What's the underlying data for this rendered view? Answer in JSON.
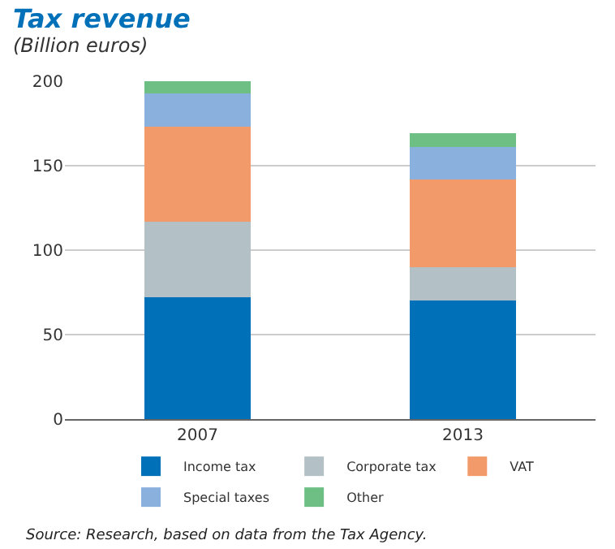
{
  "chart_data": {
    "type": "bar",
    "stacked": true,
    "title": "Tax revenue",
    "subtitle": "(Billion euros)",
    "categories": [
      "2007",
      "2013"
    ],
    "series": [
      {
        "name": "Income tax",
        "color": "#0070b8",
        "values": [
          72,
          70
        ]
      },
      {
        "name": "Corporate tax",
        "color": "#b3c0c5",
        "values": [
          45,
          20
        ]
      },
      {
        "name": "VAT",
        "color": "#f39a6b",
        "values": [
          56,
          52
        ]
      },
      {
        "name": "Special taxes",
        "color": "#8ab0dd",
        "values": [
          20,
          19
        ]
      },
      {
        "name": "Other",
        "color": "#6dbf84",
        "values": [
          7,
          8
        ]
      }
    ],
    "ylim": [
      0,
      200
    ],
    "yticks": [
      0,
      50,
      100,
      150,
      200
    ],
    "grid": "y",
    "legend": "bottom",
    "annotations": [
      "Source: Research, based on data from the Tax Agency."
    ]
  }
}
